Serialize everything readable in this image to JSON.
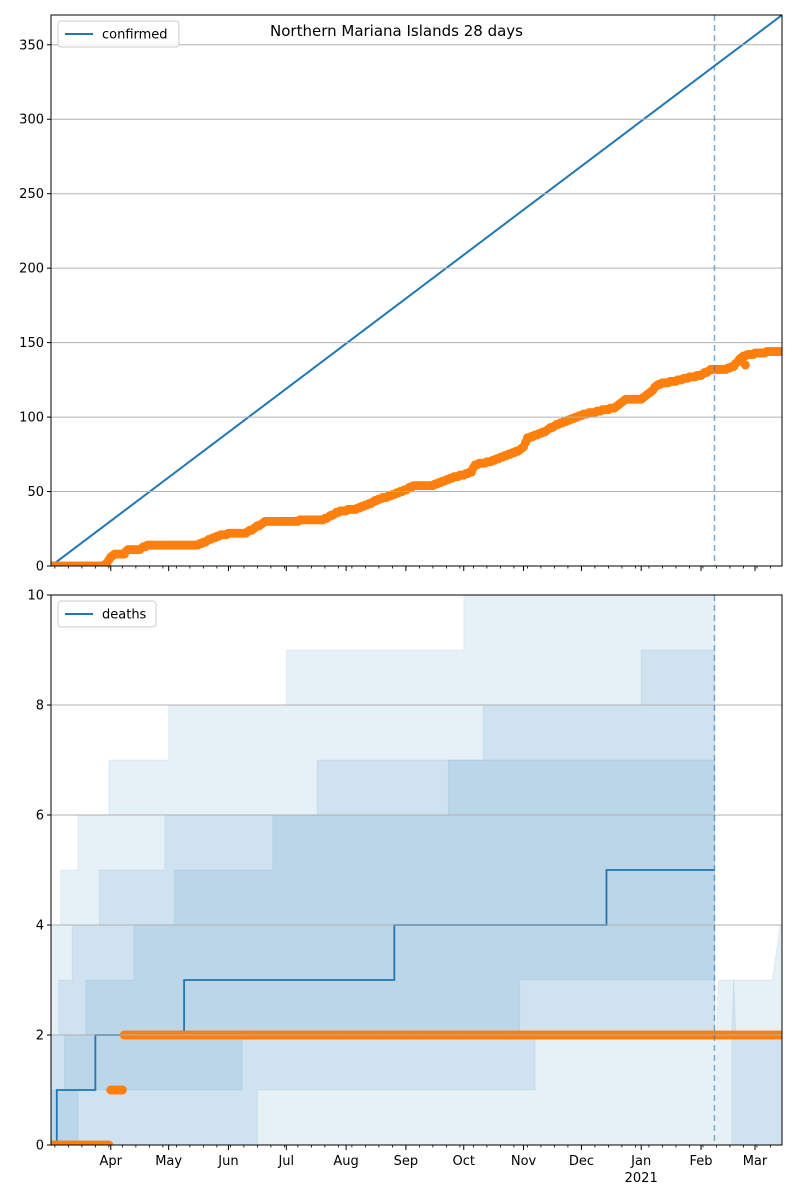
{
  "chart_data": [
    {
      "type": "line",
      "title": "Northern Mariana Islands 28 days",
      "xlabel": "",
      "ylabel": "",
      "x_range": [
        "2020-03-01",
        "2021-03-15"
      ],
      "ylim": [
        0,
        370
      ],
      "y_ticks": [
        0,
        50,
        100,
        150,
        200,
        250,
        300,
        350
      ],
      "grid": "horizontal",
      "legend": {
        "position": "top-left",
        "entries": [
          "confirmed"
        ]
      },
      "vline_date": "2021-02-08",
      "series": [
        {
          "name": "confirmed",
          "kind": "line",
          "color": "#1f77b4",
          "points": [
            [
              "2020-03-01",
              0
            ],
            [
              "2021-03-15",
              370
            ]
          ]
        },
        {
          "kind": "scatter",
          "color": "#ff7f0e",
          "points": [
            [
              "2020-03-01",
              0
            ],
            [
              "2020-03-28",
              0
            ],
            [
              "2020-03-30",
              2
            ],
            [
              "2020-04-01",
              6
            ],
            [
              "2020-04-03",
              8
            ],
            [
              "2020-04-08",
              8
            ],
            [
              "2020-04-10",
              11
            ],
            [
              "2020-04-16",
              11
            ],
            [
              "2020-04-18",
              13
            ],
            [
              "2020-04-22",
              14
            ],
            [
              "2020-05-15",
              14
            ],
            [
              "2020-05-20",
              16
            ],
            [
              "2020-05-24",
              19
            ],
            [
              "2020-05-29",
              21
            ],
            [
              "2020-06-03",
              22
            ],
            [
              "2020-06-10",
              22
            ],
            [
              "2020-06-14",
              25
            ],
            [
              "2020-06-18",
              28
            ],
            [
              "2020-06-20",
              30
            ],
            [
              "2020-07-05",
              30
            ],
            [
              "2020-07-10",
              31
            ],
            [
              "2020-07-20",
              31
            ],
            [
              "2020-07-26",
              35
            ],
            [
              "2020-07-30",
              37
            ],
            [
              "2020-08-05",
              38
            ],
            [
              "2020-08-12",
              41
            ],
            [
              "2020-08-18",
              45
            ],
            [
              "2020-08-24",
              47
            ],
            [
              "2020-08-30",
              50
            ],
            [
              "2020-09-05",
              54
            ],
            [
              "2020-09-15",
              54
            ],
            [
              "2020-09-22",
              58
            ],
            [
              "2020-09-30",
              61
            ],
            [
              "2020-10-05",
              63
            ],
            [
              "2020-10-07",
              68
            ],
            [
              "2020-10-15",
              70
            ],
            [
              "2020-10-22",
              74
            ],
            [
              "2020-10-29",
              77
            ],
            [
              "2020-11-01",
              80
            ],
            [
              "2020-11-03",
              86
            ],
            [
              "2020-11-08",
              88
            ],
            [
              "2020-11-13",
              91
            ],
            [
              "2020-11-18",
              95
            ],
            [
              "2020-11-23",
              97
            ],
            [
              "2020-11-28",
              100
            ],
            [
              "2020-12-03",
              102
            ],
            [
              "2020-12-10",
              104
            ],
            [
              "2020-12-18",
              106
            ],
            [
              "2020-12-24",
              112
            ],
            [
              "2021-01-01",
              112
            ],
            [
              "2021-01-06",
              117
            ],
            [
              "2021-01-10",
              122
            ],
            [
              "2021-01-18",
              124
            ],
            [
              "2021-01-24",
              126
            ],
            [
              "2021-02-01",
              128
            ],
            [
              "2021-02-06",
              132
            ],
            [
              "2021-02-14",
              132
            ],
            [
              "2021-02-18",
              134
            ],
            [
              "2021-02-22",
              140
            ],
            [
              "2021-02-25",
              142
            ],
            [
              "2021-03-04",
              143
            ],
            [
              "2021-03-10",
              144
            ],
            [
              "2021-03-15",
              144
            ],
            [
              "2021-02-24",
              135
            ]
          ]
        }
      ]
    },
    {
      "type": "line",
      "xlabel": "",
      "ylabel": "",
      "x_range": [
        "2020-03-01",
        "2021-03-15"
      ],
      "ylim": [
        0,
        10
      ],
      "y_ticks": [
        0,
        2,
        4,
        6,
        8,
        10
      ],
      "x_ticks": [
        {
          "date": "2020-04-01",
          "label": "Apr"
        },
        {
          "date": "2020-05-01",
          "label": "May"
        },
        {
          "date": "2020-06-01",
          "label": "Jun"
        },
        {
          "date": "2020-07-01",
          "label": "Jul"
        },
        {
          "date": "2020-08-01",
          "label": "Aug"
        },
        {
          "date": "2020-09-01",
          "label": "Sep"
        },
        {
          "date": "2020-10-01",
          "label": "Oct"
        },
        {
          "date": "2020-11-01",
          "label": "Nov"
        },
        {
          "date": "2020-12-01",
          "label": "Dec"
        },
        {
          "date": "2021-01-01",
          "label": "Jan",
          "sublabel": "2021"
        },
        {
          "date": "2021-02-01",
          "label": "Feb"
        },
        {
          "date": "2021-03-01",
          "label": "Mar"
        }
      ],
      "grid": "horizontal",
      "legend": {
        "position": "top-left",
        "entries": [
          "deaths"
        ]
      },
      "vline_date": "2021-02-08",
      "bands": [
        {
          "color": "#1f77b4",
          "alpha": 0.11,
          "upper": [
            [
              "2020-03-01",
              4
            ],
            [
              "2020-03-06",
              5
            ],
            [
              "2020-03-15",
              6
            ],
            [
              "2020-03-31",
              7
            ],
            [
              "2020-05-01",
              8
            ],
            [
              "2020-07-01",
              9
            ],
            [
              "2020-10-01",
              10
            ],
            [
              "2021-02-08",
              10
            ]
          ],
          "lower": [
            [
              "2020-03-01",
              0
            ],
            [
              "2021-02-08",
              0
            ]
          ]
        },
        {
          "color": "#1f77b4",
          "alpha": 0.11,
          "upper": [
            [
              "2020-03-01",
              2
            ],
            [
              "2020-03-05",
              3
            ],
            [
              "2020-03-12",
              4
            ],
            [
              "2020-03-26",
              5
            ],
            [
              "2020-04-01",
              5
            ],
            [
              "2020-04-29",
              6
            ],
            [
              "2020-07-17",
              7
            ],
            [
              "2020-10-11",
              8
            ],
            [
              "2021-01-01",
              9
            ],
            [
              "2021-02-08",
              9
            ]
          ],
          "lower": [
            [
              "2020-03-01",
              0
            ],
            [
              "2020-06-16",
              0
            ],
            [
              "2020-06-18",
              1
            ],
            [
              "2020-11-07",
              1
            ],
            [
              "2020-11-09",
              2
            ],
            [
              "2021-02-08",
              2
            ]
          ]
        },
        {
          "color": "#1f77b4",
          "alpha": 0.11,
          "upper": [
            [
              "2020-03-01",
              1
            ],
            [
              "2020-03-08",
              2
            ],
            [
              "2020-03-19",
              3
            ],
            [
              "2020-04-13",
              4
            ],
            [
              "2020-05-04",
              5
            ],
            [
              "2020-06-20",
              5
            ],
            [
              "2020-06-24",
              6
            ],
            [
              "2020-09-21",
              6
            ],
            [
              "2020-09-23",
              7
            ],
            [
              "2021-02-08",
              7
            ]
          ],
          "lower": [
            [
              "2020-03-01",
              0
            ],
            [
              "2020-03-15",
              0
            ],
            [
              "2020-03-21",
              1
            ],
            [
              "2020-06-08",
              1
            ],
            [
              "2020-06-10",
              2
            ],
            [
              "2020-10-30",
              2
            ],
            [
              "2020-11-01",
              3
            ],
            [
              "2021-02-08",
              3
            ]
          ]
        }
      ],
      "series": [
        {
          "name": "deaths",
          "kind": "step",
          "color": "#1f77b4",
          "points": [
            [
              "2020-03-01",
              0
            ],
            [
              "2020-03-04",
              1
            ],
            [
              "2020-03-24",
              2
            ],
            [
              "2020-05-09",
              3
            ],
            [
              "2020-08-26",
              4
            ],
            [
              "2020-12-14",
              5
            ],
            [
              "2021-02-08",
              5
            ]
          ]
        },
        {
          "kind": "scatter",
          "color": "#ff7f0e",
          "points": [
            [
              "2020-03-01",
              0
            ],
            [
              "2020-03-31",
              0
            ],
            [
              "2020-04-01",
              1
            ],
            [
              "2020-04-07",
              1
            ],
            [
              "2020-04-08",
              2
            ],
            [
              "2020-06-01",
              2
            ],
            [
              "2020-08-01",
              2
            ],
            [
              "2020-10-01",
              2
            ],
            [
              "2020-12-01",
              2
            ],
            [
              "2021-02-01",
              2
            ],
            [
              "2021-03-15",
              2
            ]
          ]
        }
      ],
      "tail_band": {
        "color": "#1f77b4",
        "segments": [
          [
            [
              "2021-02-09",
              2
            ],
            [
              "2021-02-10",
              3
            ],
            [
              "2021-02-18",
              3
            ],
            [
              "2021-02-19",
              2
            ],
            [
              "2021-03-15",
              2
            ]
          ],
          [
            [
              "2021-02-17",
              2
            ],
            [
              "2021-02-18",
              3
            ],
            [
              "2021-03-10",
              3
            ],
            [
              "2021-03-14",
              4
            ],
            [
              "2021-03-15",
              4
            ]
          ]
        ]
      }
    }
  ]
}
